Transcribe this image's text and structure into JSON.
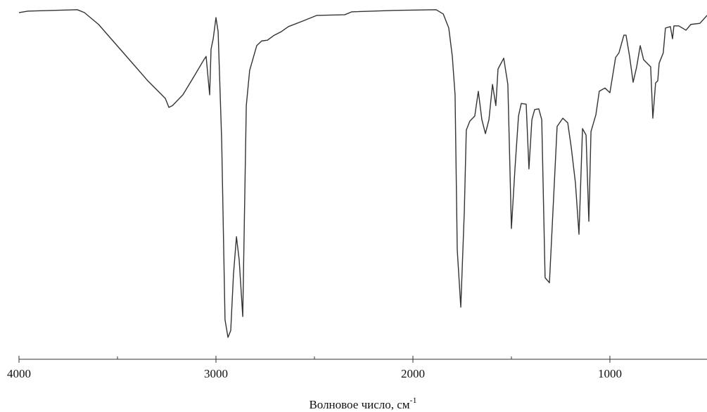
{
  "chart_data": {
    "type": "line",
    "x_label": "Волновое число, см",
    "x_label_sup": "-1",
    "x": [
      4000,
      3954,
      3704,
      3668,
      3596,
      3454,
      3346,
      3257,
      3239,
      3221,
      3168,
      3114,
      3061,
      3050,
      3032,
      3025,
      3014,
      3000,
      2989,
      2971,
      2954,
      2939,
      2925,
      2911,
      2896,
      2882,
      2864,
      2846,
      2829,
      2793,
      2768,
      2739,
      2704,
      2668,
      2632,
      2561,
      2489,
      2346,
      2311,
      2096,
      1882,
      1846,
      1818,
      1800,
      1786,
      1775,
      1757,
      1739,
      1729,
      1711,
      1686,
      1668,
      1650,
      1632,
      1614,
      1596,
      1579,
      1568,
      1539,
      1518,
      1500,
      1482,
      1464,
      1450,
      1425,
      1411,
      1396,
      1382,
      1361,
      1346,
      1329,
      1307,
      1289,
      1268,
      1239,
      1214,
      1196,
      1175,
      1157,
      1139,
      1121,
      1107,
      1096,
      1071,
      1054,
      1025,
      1000,
      971,
      954,
      929,
      918,
      900,
      882,
      864,
      846,
      829,
      793,
      782,
      768,
      757,
      750,
      729,
      718,
      693,
      682,
      675,
      650,
      614,
      589,
      543,
      507
    ],
    "values": [
      96.5,
      96.9,
      97.3,
      96.5,
      93.2,
      84.3,
      77.5,
      72.6,
      70.1,
      70.6,
      73.6,
      78.5,
      83.4,
      84.3,
      73.6,
      86.3,
      89.2,
      95.1,
      91.2,
      60.9,
      11.0,
      6.1,
      8.0,
      23.7,
      34.1,
      27.6,
      11.9,
      70.6,
      80.4,
      87.3,
      88.6,
      88.8,
      90.2,
      91.2,
      92.6,
      94.1,
      95.7,
      95.9,
      96.7,
      97.1,
      97.3,
      96.1,
      92.2,
      84.3,
      73.6,
      30.5,
      14.5,
      41.3,
      63.8,
      66.3,
      67.7,
      74.6,
      66.7,
      62.8,
      66.7,
      76.5,
      70.6,
      80.8,
      83.8,
      76.5,
      36.4,
      53.0,
      67.7,
      71.2,
      71.0,
      53.0,
      66.7,
      69.5,
      69.7,
      66.7,
      22.7,
      21.3,
      41.3,
      64.8,
      67.1,
      65.8,
      58.9,
      49.1,
      34.8,
      64.2,
      62.4,
      38.4,
      63.4,
      68.1,
      74.6,
      75.5,
      74.2,
      84.0,
      85.3,
      90.2,
      90.2,
      84.3,
      77.1,
      81.4,
      87.3,
      83.4,
      81.4,
      67.1,
      76.9,
      77.5,
      82.4,
      85.3,
      92.2,
      92.6,
      89.2,
      92.8,
      92.8,
      91.6,
      93.2,
      93.5,
      95.7
    ],
    "color": "#333333",
    "xlim": [
      4000,
      507
    ],
    "xticks": [
      4000,
      3000,
      2000,
      1000
    ],
    "xminorticks": [
      3500,
      2500,
      1500
    ],
    "ylim": [
      0,
      100
    ],
    "grid": false
  }
}
